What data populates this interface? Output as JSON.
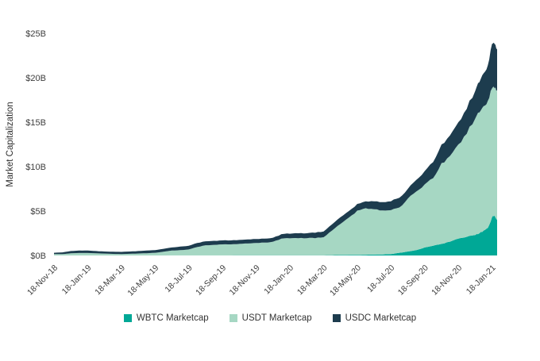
{
  "chart_data": {
    "type": "area",
    "stacked": true,
    "title": "",
    "xlabel": "",
    "ylabel": "Market Capitalization",
    "ylim": [
      0,
      25
    ],
    "xlim_months": [
      0,
      26.3
    ],
    "grid": false,
    "legend_position": "bottom",
    "y_ticks": [
      {
        "value": 0,
        "label": "$0B"
      },
      {
        "value": 5,
        "label": "$5B"
      },
      {
        "value": 10,
        "label": "$10B"
      },
      {
        "value": 15,
        "label": "$15B"
      },
      {
        "value": 20,
        "label": "$20B"
      },
      {
        "value": 25,
        "label": "$25B"
      }
    ],
    "x_ticks": [
      {
        "month": 0,
        "label": "18-Nov-18"
      },
      {
        "month": 2,
        "label": "18-Jan-19"
      },
      {
        "month": 4,
        "label": "18-Mar-19"
      },
      {
        "month": 6,
        "label": "18-May-19"
      },
      {
        "month": 8,
        "label": "18-Jul-19"
      },
      {
        "month": 10,
        "label": "18-Sep-19"
      },
      {
        "month": 12,
        "label": "18-Nov-19"
      },
      {
        "month": 14,
        "label": "18-Jan-20"
      },
      {
        "month": 16,
        "label": "18-Mar-20"
      },
      {
        "month": 18,
        "label": "18-May-20"
      },
      {
        "month": 20,
        "label": "18-Jul-20"
      },
      {
        "month": 22,
        "label": "18-Sep-20"
      },
      {
        "month": 24,
        "label": "18-Nov-20"
      },
      {
        "month": 26,
        "label": "18-Jan-21"
      }
    ],
    "x_months": [
      0,
      0.5,
      1,
      1.5,
      2,
      2.5,
      3,
      3.5,
      4,
      4.5,
      5,
      5.5,
      6,
      6.5,
      7,
      7.5,
      8,
      8.5,
      9,
      9.5,
      10,
      10.5,
      11,
      11.5,
      12,
      12.5,
      13,
      13.5,
      14,
      14.5,
      15,
      15.5,
      16,
      16.5,
      17,
      17.5,
      18,
      18.5,
      19,
      19.5,
      20,
      20.5,
      21,
      21.5,
      22,
      22.5,
      23,
      23.5,
      24,
      24.5,
      25,
      25.25,
      25.5,
      25.75,
      26,
      26.15,
      26.3
    ],
    "series": [
      {
        "name": "WBTC Marketcap",
        "color": "#00a896",
        "values": [
          0,
          0,
          0,
          0,
          0,
          0,
          0,
          0,
          0,
          0,
          0,
          0,
          0,
          0,
          0.01,
          0.01,
          0.01,
          0.01,
          0.01,
          0.01,
          0.01,
          0.01,
          0.02,
          0.02,
          0.02,
          0.02,
          0.02,
          0.02,
          0.02,
          0.02,
          0.03,
          0.03,
          0.03,
          0.04,
          0.05,
          0.06,
          0.07,
          0.08,
          0.1,
          0.12,
          0.15,
          0.3,
          0.45,
          0.6,
          0.9,
          1.1,
          1.3,
          1.55,
          1.9,
          2.1,
          2.3,
          2.5,
          2.8,
          3.1,
          4.3,
          4.5,
          4.0
        ]
      },
      {
        "name": "USDT Marketcap",
        "color": "#a6d7c3",
        "values": [
          0.15,
          0.15,
          0.25,
          0.28,
          0.28,
          0.25,
          0.21,
          0.18,
          0.16,
          0.19,
          0.22,
          0.25,
          0.3,
          0.42,
          0.54,
          0.59,
          0.67,
          0.94,
          1.14,
          1.19,
          1.24,
          1.24,
          1.28,
          1.33,
          1.38,
          1.43,
          1.53,
          1.88,
          1.91,
          1.93,
          1.92,
          1.92,
          2.02,
          2.76,
          3.5,
          4.21,
          4.98,
          5.24,
          5.1,
          4.95,
          4.95,
          5.1,
          5.95,
          6.6,
          7.1,
          7.6,
          9.1,
          9.65,
          10.6,
          11.6,
          13.1,
          13.6,
          14.0,
          14.3,
          14.5,
          14.3,
          14.6
        ]
      },
      {
        "name": "USDC Marketcap",
        "color": "#1d3c4e",
        "values": [
          0.15,
          0.2,
          0.25,
          0.27,
          0.27,
          0.25,
          0.24,
          0.24,
          0.24,
          0.26,
          0.28,
          0.3,
          0.3,
          0.33,
          0.35,
          0.4,
          0.42,
          0.45,
          0.45,
          0.45,
          0.45,
          0.45,
          0.45,
          0.45,
          0.45,
          0.45,
          0.45,
          0.5,
          0.52,
          0.55,
          0.55,
          0.6,
          0.65,
          0.7,
          0.75,
          0.73,
          0.75,
          0.78,
          0.9,
          0.93,
          1.0,
          1.1,
          1.1,
          1.3,
          1.5,
          1.8,
          2.1,
          2.3,
          2.5,
          2.8,
          3.1,
          3.4,
          3.7,
          4.0,
          5.0,
          5.0,
          4.6
        ]
      }
    ]
  }
}
